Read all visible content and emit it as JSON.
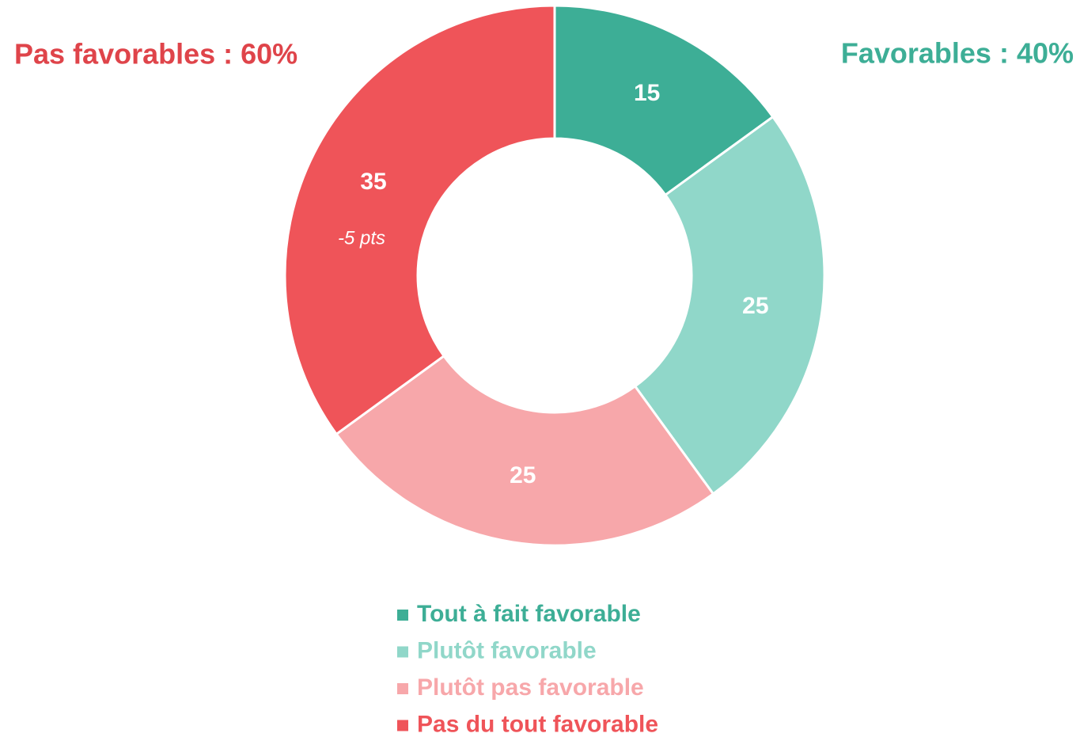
{
  "chart_data": {
    "type": "donut",
    "categories": [
      "Tout à fait favorable",
      "Plutôt favorable",
      "Plutôt pas favorable",
      "Pas du tout favorable"
    ],
    "values": [
      15,
      25,
      25,
      35
    ],
    "colors": [
      "#3dae96",
      "#90d7c9",
      "#f7a7aa",
      "#ef5459"
    ],
    "annotations": [
      "Pas favorables : 60%",
      "Favorables : 40%",
      "-5 pts"
    ],
    "legend": "bottom"
  }
}
